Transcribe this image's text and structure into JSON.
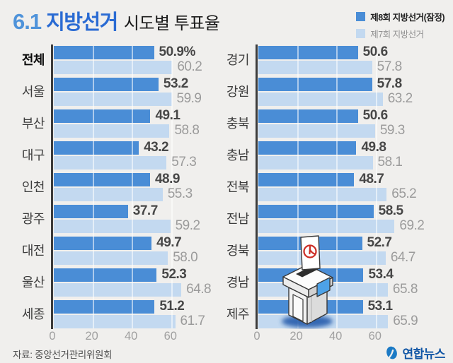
{
  "title": {
    "prefix": "6.1",
    "brand": "지방선거",
    "rest": "시도별 투표율"
  },
  "legend": {
    "items": [
      {
        "label": "제8회 지방선거(잠정)",
        "color": "#4a8dd6"
      },
      {
        "label": "제7회 지방선거",
        "color": "#c3d9f0"
      }
    ]
  },
  "source": "자료: 중앙선거관리위원회",
  "publisher": "연합뉴스",
  "colors": {
    "bar_8th": "#4a8dd6",
    "bar_7th": "#c3d9f0",
    "background": "#f0efed",
    "axis": "#3c3c3c",
    "title_number_blue": "#4f93da",
    "title_brand_blue": "#2a6bd3",
    "publisher_blue": "#1156a5"
  },
  "chart_data": [
    {
      "type": "bar",
      "orientation": "horizontal",
      "panel": "left",
      "categories": [
        "전체",
        "서울",
        "부산",
        "대구",
        "인천",
        "광주",
        "대전",
        "울산",
        "세종"
      ],
      "series": [
        {
          "name": "제8회 지방선거(잠정)",
          "values": [
            50.9,
            53.2,
            49.1,
            43.2,
            48.9,
            37.7,
            49.7,
            52.3,
            51.2
          ],
          "labels": [
            "50.9%",
            "53.2",
            "49.1",
            "43.2",
            "48.9",
            "37.7",
            "49.7",
            "52.3",
            "51.2"
          ]
        },
        {
          "name": "제7회 지방선거",
          "values": [
            60.2,
            59.9,
            58.8,
            57.3,
            55.3,
            59.2,
            58.0,
            64.8,
            61.7
          ],
          "labels": [
            "60.2",
            "59.9",
            "58.8",
            "57.3",
            "55.3",
            "59.2",
            "58.0",
            "64.8",
            "61.7"
          ]
        }
      ],
      "xticks": [
        0,
        20,
        40,
        60
      ],
      "xlim": [
        0,
        72
      ],
      "emphasized_category": "전체",
      "grid": "white-vertical-over-bars",
      "legend_position": "top-right"
    },
    {
      "type": "bar",
      "orientation": "horizontal",
      "panel": "right",
      "categories": [
        "경기",
        "강원",
        "충북",
        "충남",
        "전북",
        "전남",
        "경북",
        "경남",
        "제주"
      ],
      "series": [
        {
          "name": "제8회 지방선거(잠정)",
          "values": [
            50.6,
            57.8,
            50.6,
            49.8,
            48.7,
            58.5,
            52.7,
            53.4,
            53.1
          ],
          "labels": [
            "50.6",
            "57.8",
            "50.6",
            "49.8",
            "48.7",
            "58.5",
            "52.7",
            "53.4",
            "53.1"
          ]
        },
        {
          "name": "제7회 지방선거",
          "values": [
            57.8,
            63.2,
            59.3,
            58.1,
            65.2,
            69.2,
            64.7,
            65.8,
            65.9
          ],
          "labels": [
            "57.8",
            "63.2",
            "59.3",
            "58.1",
            "65.2",
            "69.2",
            "64.7",
            "65.8",
            "65.9"
          ]
        }
      ],
      "xticks": [
        0,
        20,
        40,
        60
      ],
      "xlim": [
        0,
        72
      ],
      "grid": "white-vertical-over-bars"
    }
  ]
}
